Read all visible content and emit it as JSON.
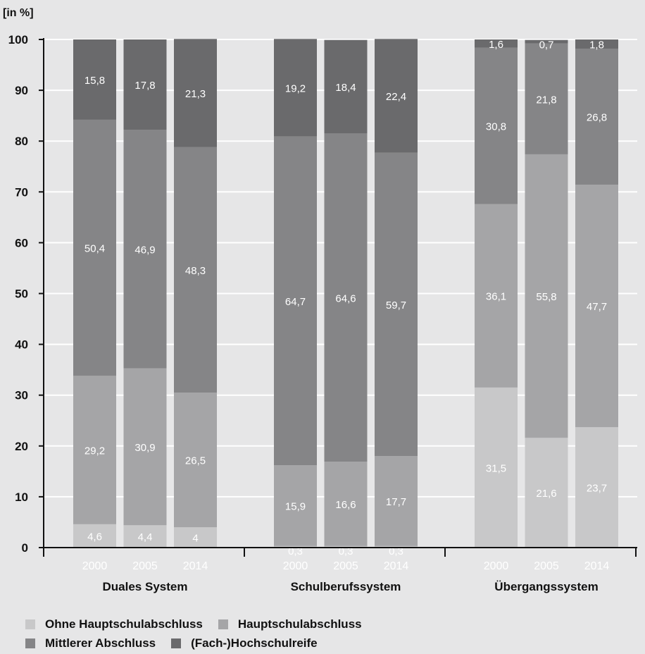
{
  "chart_data": {
    "type": "bar",
    "stacked": true,
    "ylabel": "[in %]",
    "ylim": [
      0,
      100
    ],
    "yticks": [
      0,
      10,
      20,
      30,
      40,
      50,
      60,
      70,
      80,
      90,
      100
    ],
    "grid": true,
    "legend_position": "bottom-left",
    "groups": [
      {
        "name": "Duales System",
        "categories": [
          "2000",
          "2005",
          "2014"
        ]
      },
      {
        "name": "Schulberufssystem",
        "categories": [
          "2000",
          "2005",
          "2014"
        ]
      },
      {
        "name": "Übergangssystem",
        "categories": [
          "2000",
          "2005",
          "2014"
        ]
      }
    ],
    "series": [
      {
        "name": "Ohne Hauptschulabschluss",
        "color": "#c8c8c9",
        "values": [
          4.6,
          4.4,
          4,
          0.3,
          0.3,
          0.3,
          31.5,
          21.6,
          23.7
        ],
        "labels": [
          "4,6",
          "4,4",
          "4",
          "0,3",
          "0,3",
          "0,3",
          "31,5",
          "21,6",
          "23,7"
        ]
      },
      {
        "name": "Hauptschulabschluss",
        "color": "#a5a5a7",
        "values": [
          29.2,
          30.9,
          26.5,
          15.9,
          16.6,
          17.7,
          36.1,
          55.8,
          47.7
        ],
        "labels": [
          "29,2",
          "30,9",
          "26,5",
          "15,9",
          "16,6",
          "17,7",
          "36,1",
          "55,8",
          "47,7"
        ]
      },
      {
        "name": "Mittlerer Abschluss",
        "color": "#858587",
        "values": [
          50.4,
          46.9,
          48.3,
          64.7,
          64.6,
          59.7,
          30.8,
          21.8,
          26.8
        ],
        "labels": [
          "50,4",
          "46,9",
          "48,3",
          "64,7",
          "64,6",
          "59,7",
          "30,8",
          "21,8",
          "26,8"
        ]
      },
      {
        "name": "(Fach-)Hochschulreife",
        "color": "#6a6a6c",
        "values": [
          15.8,
          17.8,
          21.3,
          19.2,
          18.4,
          22.4,
          1.6,
          0.7,
          1.8
        ],
        "labels": [
          "15,8",
          "17,8",
          "21,3",
          "19,2",
          "18,4",
          "22,4",
          "1,6",
          "0,7",
          "1,8"
        ]
      }
    ]
  }
}
